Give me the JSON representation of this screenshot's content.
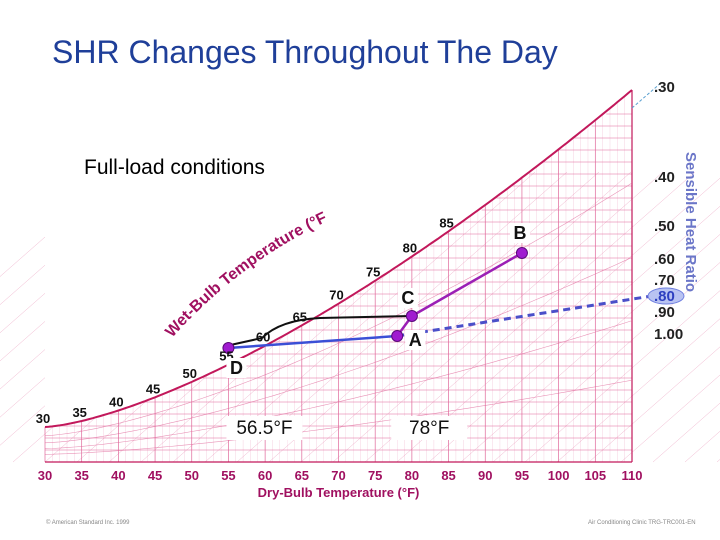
{
  "title": "SHR Changes Throughout The Day",
  "subtitle": "Full-load conditions",
  "footer": {
    "left": "© American Standard Inc. 1999",
    "right": "Air Conditioning Clinic TRG-TRC001-EN"
  },
  "chart_data": {
    "type": "scatter",
    "title": "SHR Changes Throughout The Day",
    "xlabel": "Dry-Bulb Temperature (°F)",
    "x_ticks": [
      "30",
      "35",
      "40",
      "45",
      "50",
      "55",
      "60",
      "65",
      "70",
      "75",
      "80",
      "85",
      "90",
      "95",
      "100",
      "105",
      "110"
    ],
    "xlim": [
      30,
      110
    ],
    "wet_bulb_label": "Wet-Bulb Temperature (°F)",
    "wet_bulb_ticks": [
      "30",
      "35",
      "40",
      "45",
      "50",
      "55",
      "60",
      "65",
      "70",
      "75",
      "80",
      "85"
    ],
    "shr_label": "Sensible Heat Ratio",
    "shr_ticks": [
      ".30",
      ".40",
      ".50",
      ".60",
      ".70",
      ".80",
      ".90",
      "1.00"
    ],
    "shr_highlight": ".80",
    "points": [
      {
        "label": "D",
        "db": 55
      },
      {
        "label": "A",
        "db": 78
      },
      {
        "label": "C",
        "db": 80
      },
      {
        "label": "B",
        "db": 95
      }
    ],
    "temperature_labels": [
      "56.5°F",
      "78°F"
    ],
    "colors": {
      "grid": "#e0679a",
      "saturation": "#c2185b",
      "process_purple": "#9b1fb5",
      "coil_blue": "#3b4fd6",
      "shr_dashed": "#4a4fc9",
      "point": "#a01bd0",
      "axis_text": "#a01060",
      "title": "#1f3f99"
    }
  }
}
